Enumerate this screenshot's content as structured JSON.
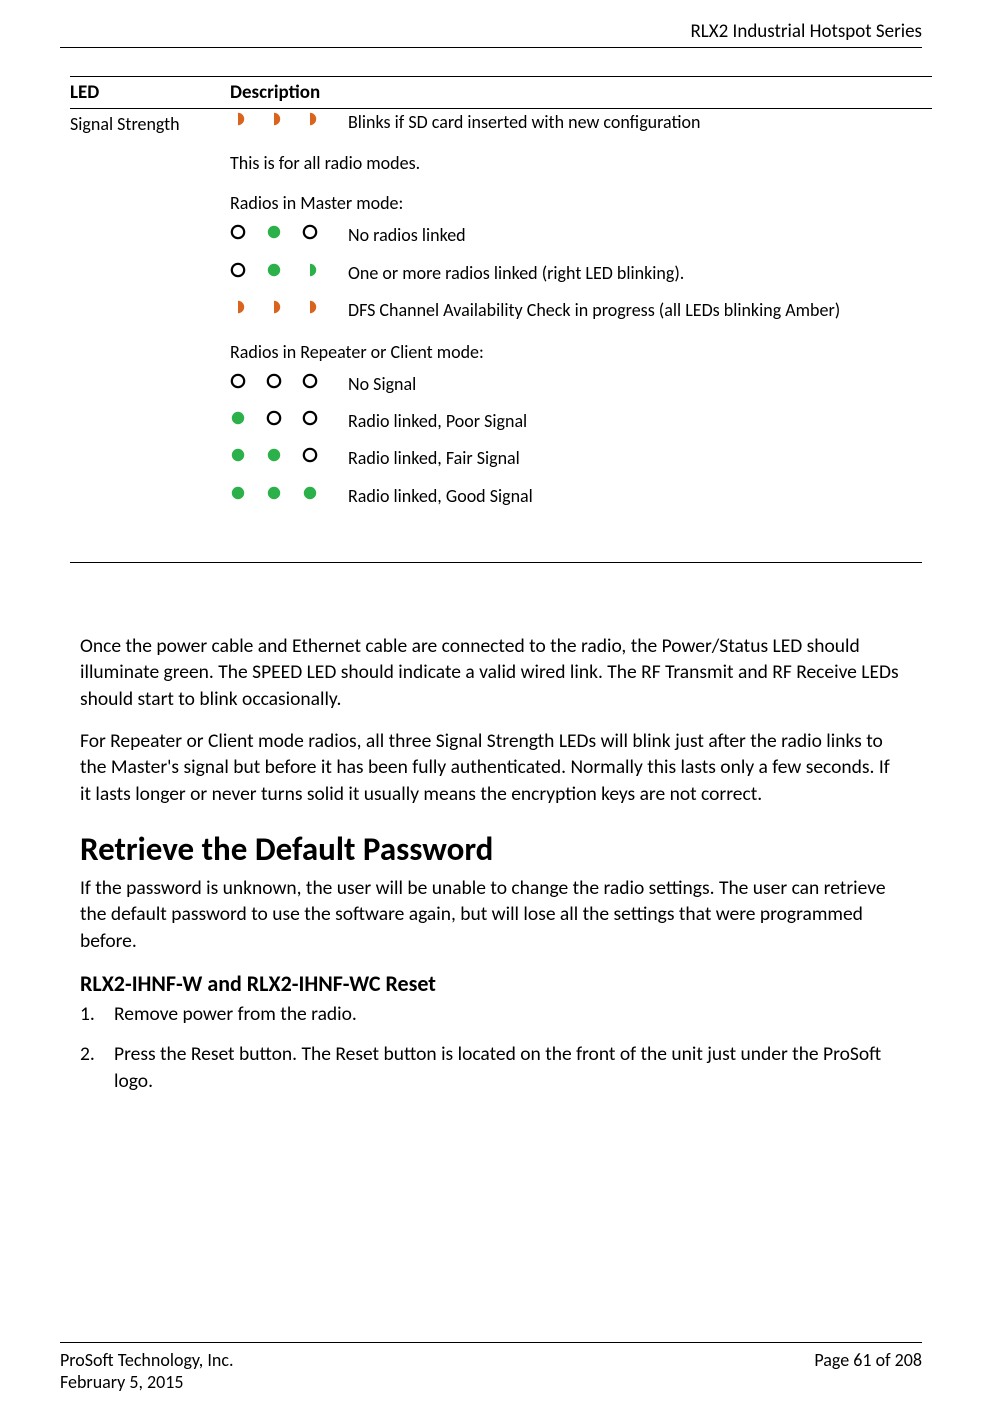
{
  "header": {
    "series": "RLX2 Industrial Hotspot Series"
  },
  "table": {
    "col_led": "LED",
    "col_desc": "Description",
    "row_label": "Signal Strength",
    "colors": {
      "amber": "#d9641e",
      "green": "#2bb04a",
      "outline": "#000000"
    },
    "top": {
      "leds": [
        "half-amber",
        "half-amber",
        "half-amber"
      ],
      "text": "Blinks if SD card inserted with new configuration"
    },
    "note_all_modes": "This is for all radio modes.",
    "master_heading": "Radios in Master mode:",
    "master_rows": [
      {
        "leds": [
          "empty",
          "solid-green",
          "empty"
        ],
        "text": "No radios linked"
      },
      {
        "leds": [
          "empty",
          "solid-green",
          "half-green"
        ],
        "text": "One or more radios linked (right LED blinking)."
      },
      {
        "leds": [
          "half-amber",
          "half-amber",
          "half-amber"
        ],
        "text": "DFS Channel Availability Check in progress (all LEDs blinking Amber)"
      }
    ],
    "client_heading": "Radios in Repeater or Client mode:",
    "client_rows": [
      {
        "leds": [
          "empty",
          "empty",
          "empty"
        ],
        "text": "No Signal"
      },
      {
        "leds": [
          "solid-green",
          "empty",
          "empty"
        ],
        "text": "Radio linked, Poor Signal"
      },
      {
        "leds": [
          "solid-green",
          "solid-green",
          "empty"
        ],
        "text": "Radio linked, Fair Signal"
      },
      {
        "leds": [
          "solid-green",
          "solid-green",
          "solid-green"
        ],
        "text": "Radio linked, Good Signal"
      }
    ]
  },
  "body": {
    "p1": "Once the power cable and Ethernet cable are connected to the radio, the Power/Status LED should illuminate green.  The SPEED LED should indicate a valid wired link. The RF Transmit and RF Receive LEDs should start to blink occasionally.",
    "p2": "For Repeater or Client mode radios, all three Signal Strength LEDs will blink just after the radio links to the Master's signal but before it has been fully authenticated. Normally this lasts only a few seconds. If it lasts longer or never turns solid it usually means the encryption keys are not correct.",
    "h1": "Retrieve the Default Password",
    "p3": "If the password is unknown, the user will be unable to change the radio settings. The user can retrieve the default password to use the software again, but will lose all the settings that were programmed before.",
    "h2": "RLX2-IHNF-W and RLX2-IHNF-WC Reset",
    "step1": "Remove power from the radio.",
    "step2": "Press the Reset button.  The Reset button is located on the front of the unit just under the ProSoft logo."
  },
  "footer": {
    "company": "ProSoft Technology, Inc.",
    "date": "February 5, 2015",
    "page": "Page 61 of 208"
  }
}
